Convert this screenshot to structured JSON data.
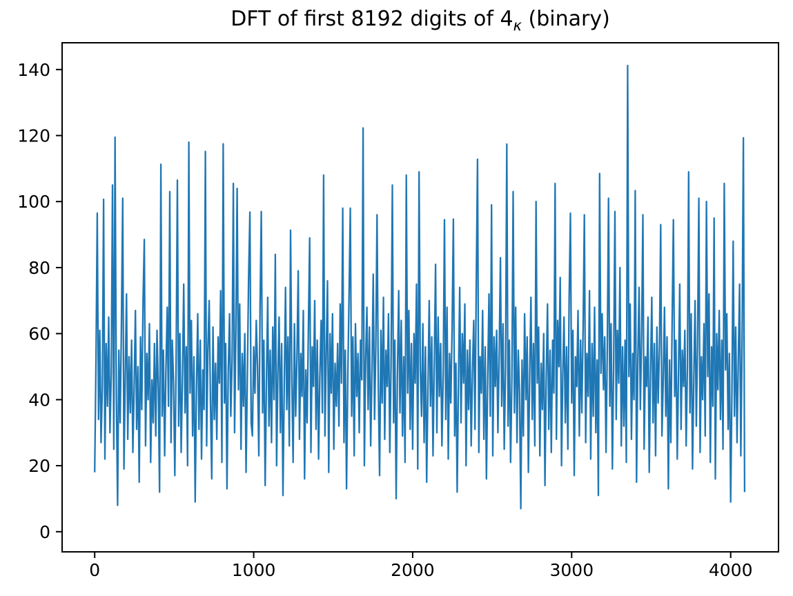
{
  "figure": {
    "title_prefix": "DFT of first 8192 digits of 4",
    "title_subscript": "κ",
    "title_suffix": " (binary)",
    "background_color": "#ffffff",
    "text_color": "#000000"
  },
  "chart_data": {
    "type": "line",
    "title": "DFT of first 8192 digits of 4κ (binary)",
    "xlabel": "",
    "ylabel": "",
    "legend": null,
    "grid": false,
    "line_color": "#1f77b4",
    "spine_color": "#000000",
    "xlim": [
      -205,
      4301
    ],
    "ylim": [
      -6.1,
      148.1
    ],
    "xticks": [
      0,
      1000,
      2000,
      3000,
      4000
    ],
    "yticks": [
      0,
      20,
      40,
      60,
      80,
      100,
      120,
      140
    ],
    "x_start": 0,
    "x_step": 8,
    "note": "Noise-like magnitude spectrum over ~4096 frequency bins; values below are a 512-point visual approximation read from the plot (core band ~20-60, dips to ~1-15, spikes to ~90-141).",
    "notable_peaks": [
      {
        "x": 3353,
        "y": 141
      },
      {
        "x": 1691,
        "y": 122
      },
      {
        "x": 130,
        "y": 120
      },
      {
        "x": 4078,
        "y": 119
      },
      {
        "x": 592,
        "y": 118
      },
      {
        "x": 814,
        "y": 118
      },
      {
        "x": 2592,
        "y": 117
      },
      {
        "x": 698,
        "y": 115
      },
      {
        "x": 2410,
        "y": 113
      },
      {
        "x": 418,
        "y": 111
      },
      {
        "x": 2040,
        "y": 109
      },
      {
        "x": 3739,
        "y": 109
      },
      {
        "x": 3177,
        "y": 109
      },
      {
        "x": 1441,
        "y": 108
      }
    ],
    "values": [
      18,
      52,
      96.5,
      34,
      61,
      27,
      44,
      100.7,
      22,
      57,
      38,
      65,
      30,
      48,
      105,
      25,
      119.5,
      41,
      8,
      55,
      33,
      62,
      101,
      19,
      47,
      72,
      28,
      53,
      36,
      58,
      24,
      44,
      67,
      31,
      50,
      15,
      59,
      37,
      70,
      88.5,
      26,
      54,
      40,
      63,
      21,
      46,
      33,
      57,
      29,
      61,
      43,
      12,
      111.3,
      35,
      55,
      23,
      49,
      68,
      38,
      103,
      27,
      58,
      45,
      17,
      51,
      106.5,
      32,
      60,
      24,
      47,
      75,
      36,
      56,
      20,
      118,
      42,
      64,
      29,
      53,
      9,
      44,
      66,
      31,
      58,
      22,
      49,
      37,
      115.2,
      26,
      55,
      70,
      40,
      16,
      62,
      34,
      51,
      28,
      59,
      45,
      73,
      21,
      117.5,
      39,
      57,
      13,
      48,
      66,
      35,
      52,
      105.5,
      30,
      61,
      104,
      43,
      69,
      25,
      54,
      38,
      60,
      18,
      47,
      77,
      96.8,
      33,
      29,
      56,
      42,
      64,
      50,
      23,
      68,
      97,
      36,
      58,
      14,
      45,
      71,
      32,
      55,
      27,
      62,
      40,
      84,
      20,
      48,
      65,
      30,
      57,
      11,
      43,
      74,
      37,
      59,
      26,
      91.3,
      46,
      21,
      63,
      35,
      52,
      79,
      28,
      54,
      41,
      67,
      16,
      49,
      33,
      61,
      89,
      24,
      56,
      44,
      70,
      31,
      58,
      22,
      47,
      64,
      36,
      108,
      29,
      53,
      76,
      18,
      60,
      42,
      66,
      25,
      51,
      38,
      57,
      32,
      69,
      45,
      98,
      27,
      55,
      13,
      48,
      72,
      98,
      35,
      59,
      23,
      63,
      41,
      54,
      30,
      58,
      46,
      122.3,
      20,
      52,
      68,
      37,
      62,
      26,
      49,
      78,
      34,
      56,
      96,
      43,
      17,
      61,
      39,
      71,
      28,
      55,
      44,
      66,
      24,
      50,
      105,
      33,
      58,
      10,
      47,
      73,
      36,
      64,
      29,
      53,
      21,
      108,
      42,
      67,
      31,
      57,
      25,
      60,
      45,
      75,
      19,
      109,
      49,
      35,
      63,
      27,
      56,
      15,
      44,
      70,
      38,
      59,
      23,
      52,
      81,
      30,
      65,
      41,
      57,
      26,
      48,
      94.5,
      34,
      68,
      22,
      54,
      39,
      62,
      94.7,
      29,
      51,
      12,
      46,
      74,
      33,
      60,
      45,
      69,
      20,
      55,
      37,
      58,
      26,
      49,
      64,
      31,
      76,
      112.8,
      24,
      53,
      42,
      67,
      28,
      56,
      16,
      47,
      72,
      35,
      99,
      23,
      59,
      44,
      61,
      30,
      54,
      83,
      38,
      63,
      25,
      50,
      117.4,
      32,
      58,
      21,
      46,
      103,
      36,
      68,
      27,
      55,
      43,
      7,
      52,
      29,
      66,
      40,
      59,
      18,
      48,
      71,
      34,
      57,
      26,
      100,
      45,
      62,
      23,
      51,
      37,
      60,
      14,
      46,
      69,
      31,
      55,
      24,
      58,
      42,
      105.5,
      28,
      64,
      50,
      77,
      20,
      47,
      65,
      33,
      56,
      25,
      70,
      96.5,
      39,
      61,
      17,
      53,
      44,
      67,
      29,
      58,
      36,
      62,
      96,
      27,
      54,
      41,
      73,
      22,
      57,
      35,
      68,
      30,
      52,
      11,
      108.5,
      48,
      66,
      43,
      59,
      24,
      55,
      101,
      38,
      63,
      19,
      50,
      97,
      34,
      61,
      45,
      80,
      26,
      56,
      32,
      58,
      21,
      141.2,
      47,
      69,
      28,
      54,
      40,
      103.3,
      15,
      51,
      74,
      37,
      60,
      96,
      25,
      53,
      44,
      65,
      18,
      49,
      71,
      33,
      57,
      23,
      62,
      39,
      56,
      93,
      29,
      46,
      68,
      35,
      59,
      13,
      52,
      27,
      64,
      94.5,
      41,
      58,
      22,
      48,
      75,
      31,
      55,
      44,
      61,
      26,
      50,
      109,
      36,
      66,
      19,
      45,
      70,
      32,
      57,
      101,
      24,
      53,
      40,
      63,
      29,
      100,
      47,
      72,
      21,
      56,
      38,
      95,
      16,
      60,
      43,
      67,
      34,
      58,
      25,
      105.5,
      49,
      66,
      31,
      54,
      9,
      42,
      88,
      35,
      62,
      27,
      51,
      75,
      23,
      57,
      119.3,
      12
    ]
  }
}
